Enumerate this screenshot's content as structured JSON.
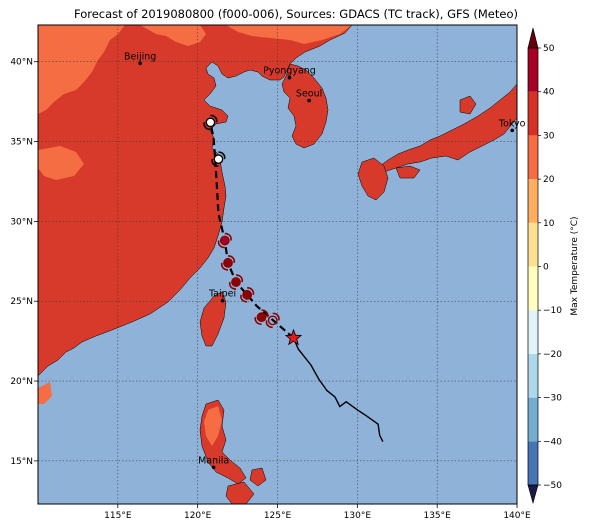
{
  "title": "Forecast of 2019080800 (f000-006), Sources: GDACS (TC track), GFS (Meteo)",
  "colors": {
    "sea": "#8fb3d8",
    "land_hot": "#d73a2a",
    "land_warm": "#f46d43",
    "land_mild": "#fdae61",
    "track": "#000000",
    "storm_marker": "#8b0000",
    "star": "#e31a1c"
  },
  "x_axis": {
    "ticks": [
      {
        "value": 115,
        "label": "115°E"
      },
      {
        "value": 120,
        "label": "120°E"
      },
      {
        "value": 125,
        "label": "125°E"
      },
      {
        "value": 130,
        "label": "130°E"
      },
      {
        "value": 135,
        "label": "135°E"
      },
      {
        "value": 140,
        "label": "140°E"
      }
    ],
    "range": [
      110,
      140
    ]
  },
  "y_axis": {
    "ticks": [
      {
        "value": 15,
        "label": "15°N"
      },
      {
        "value": 20,
        "label": "20°N"
      },
      {
        "value": 25,
        "label": "25°N"
      },
      {
        "value": 30,
        "label": "30°N"
      },
      {
        "value": 35,
        "label": "35°N"
      },
      {
        "value": 40,
        "label": "40°N"
      }
    ],
    "range": [
      12.3,
      42.3
    ]
  },
  "cities": [
    {
      "name": "Beijing",
      "lon": 116.4,
      "lat": 39.9
    },
    {
      "name": "Pyongyang",
      "lon": 125.75,
      "lat": 39.0
    },
    {
      "name": "Seoul",
      "lon": 126.98,
      "lat": 37.57
    },
    {
      "name": "Tokyo",
      "lon": 139.7,
      "lat": 35.7
    },
    {
      "name": "Taipei",
      "lon": 121.56,
      "lat": 25.03
    },
    {
      "name": "Manila",
      "lon": 121.0,
      "lat": 14.6
    }
  ],
  "colorbar": {
    "label": "Max Temperature (°C)",
    "levels": [
      -50,
      -40,
      -30,
      -20,
      -10,
      0,
      10,
      20,
      30,
      40,
      50
    ],
    "tick_labels": [
      "−50",
      "−40",
      "−30",
      "−20",
      "−10",
      "0",
      "10",
      "20",
      "30",
      "40",
      "50"
    ],
    "colors": [
      "#313695",
      "#4575b4",
      "#74add1",
      "#abd9e9",
      "#e0f3f8",
      "#ffffbf",
      "#fee090",
      "#fdae61",
      "#f46d43",
      "#d73027",
      "#a50026"
    ]
  },
  "past_track": [
    [
      131.6,
      16.2
    ],
    [
      131.4,
      16.6
    ],
    [
      131.3,
      17.3
    ],
    [
      130.6,
      17.8
    ],
    [
      130.0,
      18.2
    ],
    [
      129.3,
      18.7
    ],
    [
      128.9,
      18.4
    ],
    [
      128.6,
      19.0
    ],
    [
      128.1,
      19.4
    ],
    [
      127.6,
      20.1
    ],
    [
      127.1,
      21.0
    ],
    [
      126.3,
      22.0
    ],
    [
      126.0,
      22.7
    ]
  ],
  "forecast_track": [
    [
      126.0,
      22.7
    ],
    [
      125.2,
      23.4
    ],
    [
      124.5,
      24.0
    ],
    [
      123.7,
      24.7
    ],
    [
      123.1,
      25.4
    ],
    [
      122.4,
      26.2
    ],
    [
      121.9,
      27.4
    ],
    [
      121.7,
      28.8
    ],
    [
      121.3,
      30.5
    ],
    [
      121.2,
      32.3
    ],
    [
      121.1,
      33.9
    ],
    [
      121.0,
      35.2
    ],
    [
      120.8,
      36.2
    ]
  ],
  "storm_markers": [
    {
      "lon": 124.7,
      "lat": 23.8,
      "style": "open"
    },
    {
      "lon": 124.0,
      "lat": 24.0,
      "style": "filled"
    },
    {
      "lon": 123.1,
      "lat": 25.4,
      "style": "filled"
    },
    {
      "lon": 122.4,
      "lat": 26.2,
      "style": "filled"
    },
    {
      "lon": 121.9,
      "lat": 27.4,
      "style": "filled"
    },
    {
      "lon": 121.7,
      "lat": 28.8,
      "style": "filled-dark"
    },
    {
      "lon": 121.3,
      "lat": 33.9,
      "style": "white"
    },
    {
      "lon": 120.8,
      "lat": 36.2,
      "style": "white"
    }
  ],
  "current_position": {
    "lon": 126.0,
    "lat": 22.7
  }
}
